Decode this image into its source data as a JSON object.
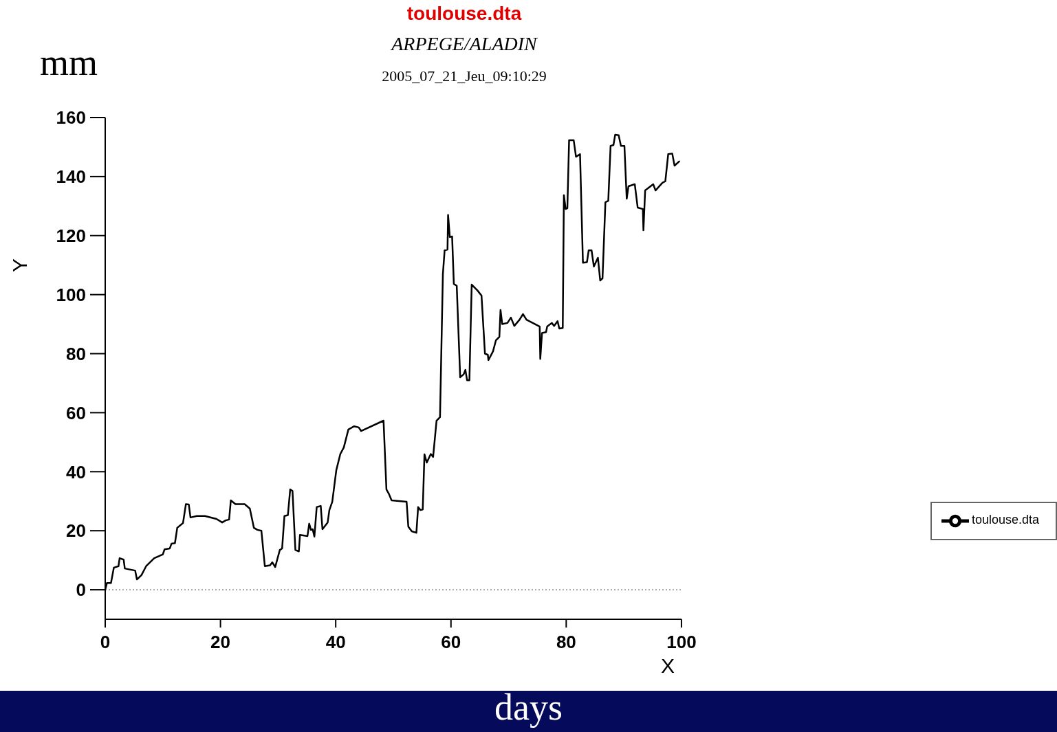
{
  "chart_data": {
    "type": "line",
    "title": "toulouse.dta",
    "subtitle": "ARPEGE/ALADIN",
    "xlabel": "X",
    "ylabel": "Y",
    "annotations": [
      "2005_07_21_Jeu_09:10:29",
      "mm",
      "days"
    ],
    "xlim": [
      0,
      100
    ],
    "xticks": [
      0,
      20,
      40,
      60,
      80,
      100
    ],
    "ylim": [
      -10,
      160
    ],
    "yticks": [
      0,
      20,
      40,
      60,
      80,
      100,
      120,
      140,
      160
    ],
    "grid": false,
    "legend": "right",
    "marker": "none",
    "line_style": "solid",
    "ref_lines": [
      {
        "axis": "y",
        "value": 0,
        "line_style": "dotted",
        "color": "#555555"
      }
    ],
    "series": [
      {
        "name": "toulouse.dta",
        "color": "#000000",
        "x": [
          0,
          0.3,
          1,
          1.5,
          2.3,
          2.5,
          3.2,
          3.4,
          5.2,
          5.5,
          6.3,
          7.1,
          8.5,
          10,
          10.3,
          11.2,
          11.5,
          12.1,
          12.5,
          13.5,
          14,
          14.5,
          14.8,
          15.9,
          17.3,
          19.3,
          20.3,
          20.9,
          21.5,
          21.8,
          22.6,
          24.2,
          25.1,
          25.8,
          26.4,
          27.1,
          27.7,
          28.6,
          29,
          29.5,
          30.3,
          30.7,
          31.1,
          31.7,
          32.1,
          32.5,
          33,
          33.6,
          33.8,
          35.1,
          35.4,
          35.7,
          36,
          36.3,
          36.7,
          37.4,
          37.7,
          38.6,
          38.9,
          39.4,
          40.1,
          40.8,
          41.4,
          42.2,
          43.2,
          44,
          44.4,
          48.3,
          48.8,
          49.2,
          49.7,
          52.3,
          52.6,
          53.2,
          54,
          54.3,
          54.7,
          55.1,
          55.4,
          55.8,
          56.5,
          56.9,
          57.5,
          58.1,
          58.6,
          58.9,
          59.4,
          59.5,
          59.8,
          60.2,
          60.5,
          61,
          61.6,
          62.2,
          62.5,
          62.8,
          63.2,
          63.6,
          64.6,
          65.3,
          65.9,
          66.4,
          66.5,
          67.3,
          67.8,
          68.4,
          68.6,
          68.9,
          69.8,
          70.4,
          71,
          71.9,
          72.5,
          73.1,
          75.4,
          75.5,
          75.8,
          76.5,
          76.7,
          77.5,
          77.9,
          78.5,
          78.8,
          79.4,
          79.6,
          79.9,
          80.2,
          80.5,
          81.3,
          81.7,
          82.4,
          82.9,
          83.6,
          83.9,
          84.4,
          84.8,
          85.5,
          85.9,
          86.3,
          86.8,
          87.3,
          87.7,
          88.2,
          88.5,
          89.1,
          89.5,
          90.1,
          90.5,
          90.8,
          91.9,
          92.4,
          93.3,
          93.4,
          93.7,
          95.1,
          95.5,
          96.7,
          97.2,
          97.7,
          98.4,
          98.8,
          99.7
        ],
        "values": [
          0,
          2.3,
          2.3,
          7.5,
          8,
          10.7,
          10.2,
          7.2,
          6.5,
          3.5,
          5,
          8,
          10.7,
          12,
          13.7,
          14,
          15.6,
          15.8,
          21,
          22.6,
          29,
          28.9,
          24.5,
          25,
          25,
          24,
          22.8,
          23.5,
          23.8,
          30.3,
          29,
          29,
          27.5,
          21,
          20.3,
          20,
          8,
          8.3,
          9.3,
          7.7,
          13.5,
          14,
          25,
          25.3,
          34,
          33.5,
          13.5,
          13,
          18.6,
          18.2,
          22.4,
          20.3,
          20.5,
          18,
          28,
          28.4,
          20.5,
          22.8,
          27,
          29.8,
          40.5,
          46,
          48.2,
          54.3,
          55.4,
          55,
          53.8,
          57.3,
          34,
          32.6,
          30.3,
          29.8,
          21.4,
          19.8,
          19.3,
          28,
          27,
          27.2,
          45.9,
          43.1,
          46,
          45,
          57.3,
          58.5,
          107,
          115,
          115.3,
          127,
          119.5,
          119.7,
          103.6,
          103,
          72,
          73,
          74.5,
          71,
          71,
          103.4,
          101.4,
          99.7,
          80,
          79.6,
          77.8,
          80.8,
          84.5,
          85.7,
          94.8,
          90,
          90.4,
          92.2,
          89.4,
          91.5,
          93.4,
          91.5,
          89.2,
          78.2,
          87,
          87.3,
          89.2,
          90.4,
          89.4,
          91,
          88.5,
          88.7,
          133.7,
          129,
          129.3,
          152.3,
          152.3,
          146.7,
          147.6,
          110.8,
          111,
          115,
          115,
          109.5,
          112.5,
          104.8,
          105.5,
          131.3,
          131.8,
          150.4,
          150.7,
          154.2,
          154,
          150.4,
          150.4,
          132.5,
          136.7,
          137.4,
          129.5,
          129,
          121.8,
          135.3,
          137.4,
          135.3,
          137.9,
          138.4,
          147.6,
          147.8,
          143.7,
          145.3
        ]
      }
    ]
  }
}
